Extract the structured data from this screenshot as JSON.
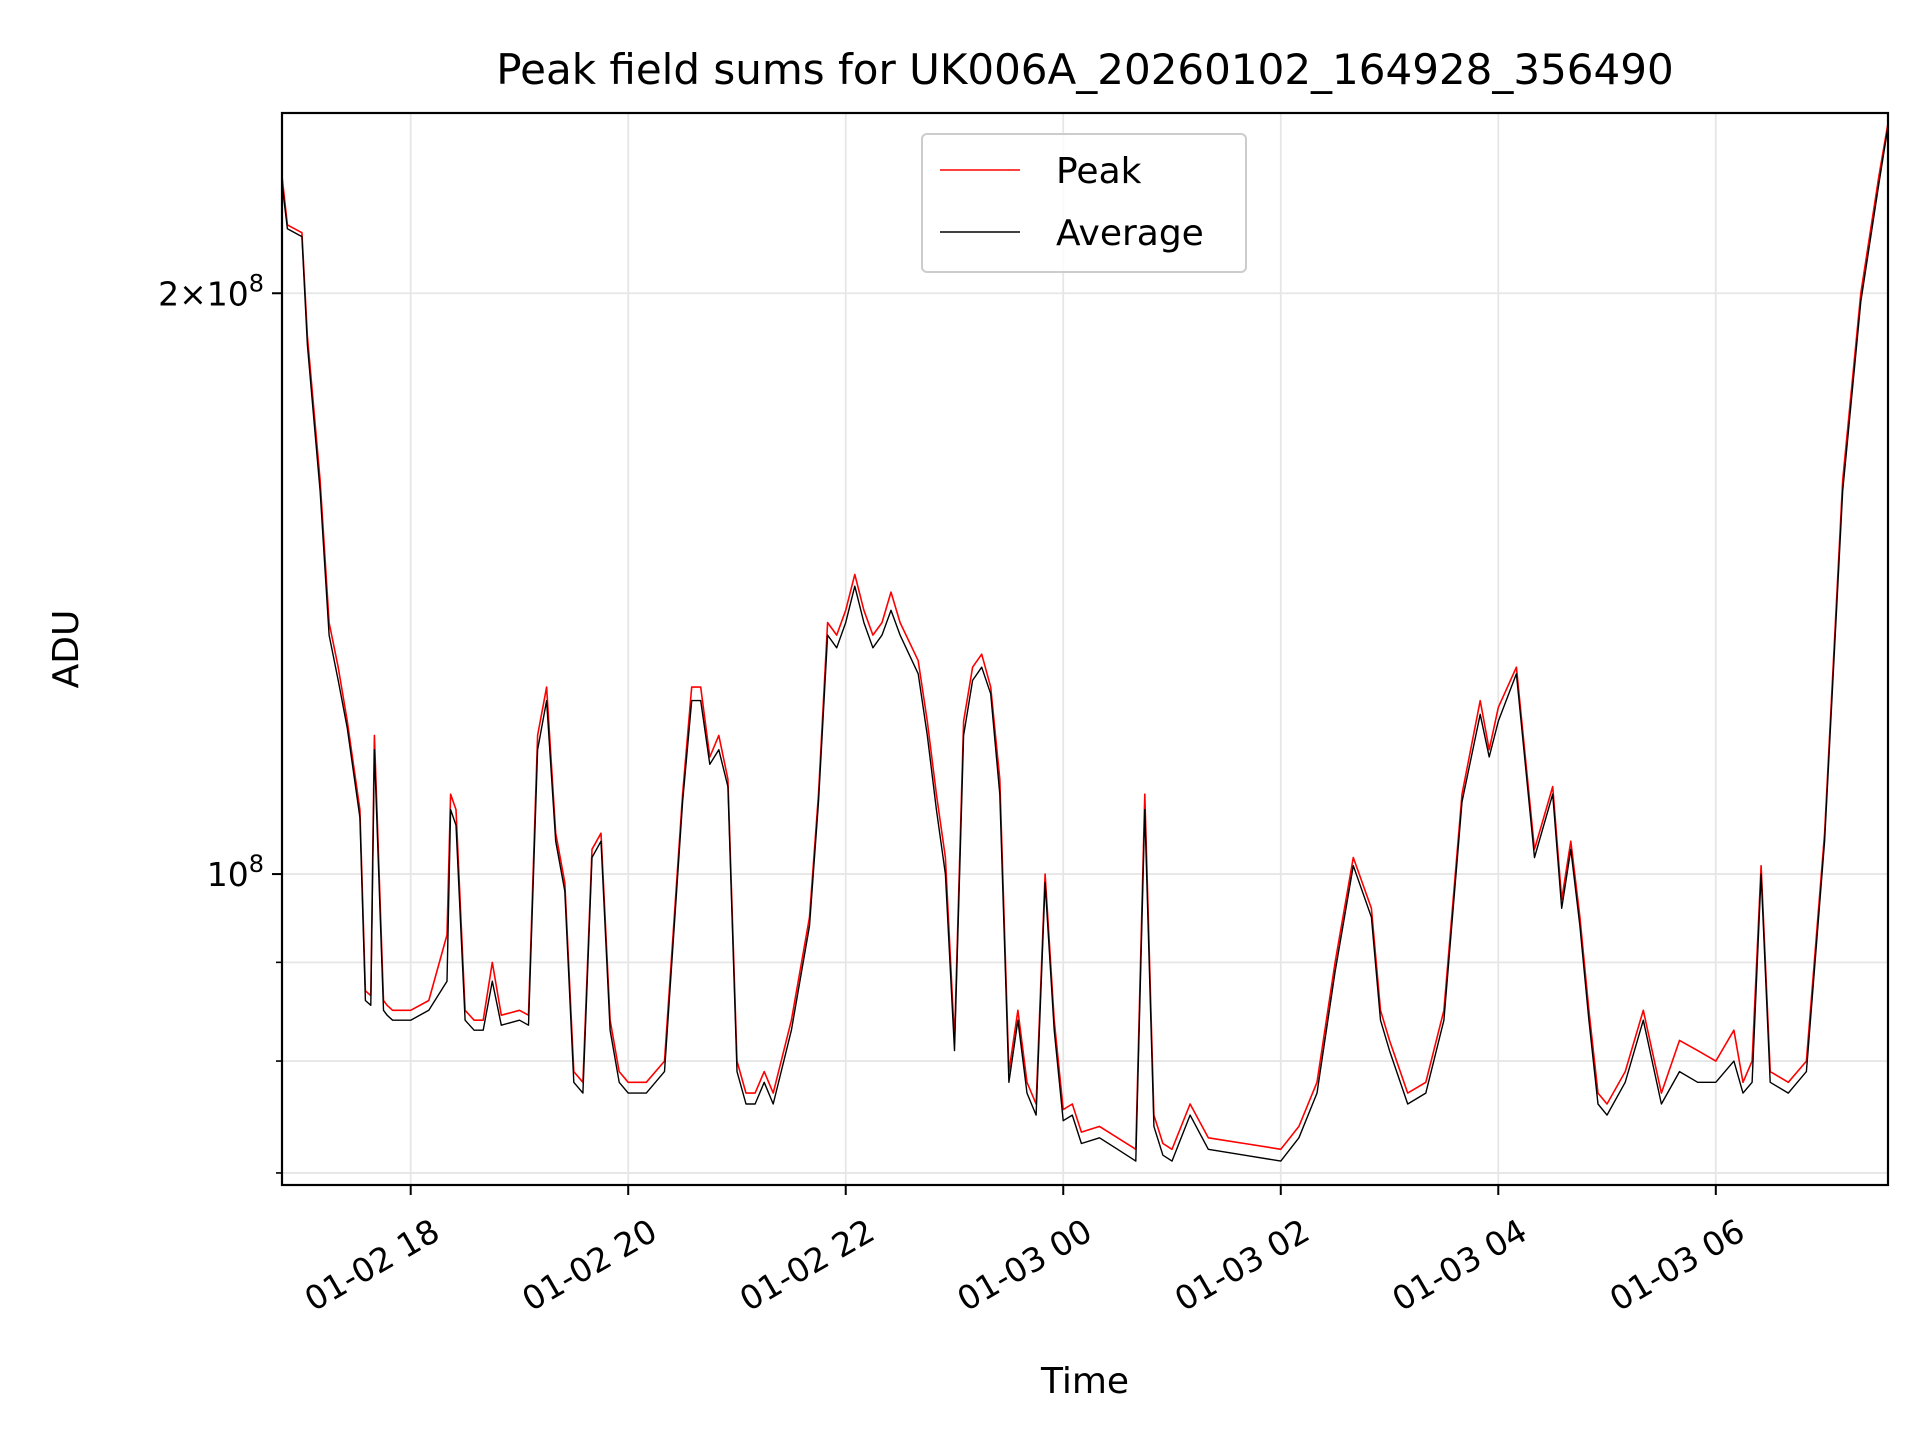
{
  "chart_data": {
    "type": "line",
    "title": "Peak field sums for UK006A_20260102_164928_356490",
    "xlabel": "Time",
    "ylabel": "ADU",
    "y_scale": "log",
    "grid": true,
    "legend_placement": "upper-center",
    "x_range": [
      "01-02 16:49",
      "01-03 07:35"
    ],
    "ylim": [
      69000000,
      248000000
    ],
    "x_ticks": [
      "01-02 18",
      "01-02 20",
      "01-02 22",
      "01-03 00",
      "01-03 02",
      "01-03 04",
      "01-03 06"
    ],
    "y_major_ticks": [
      {
        "value": 200000000,
        "mantissa": "2",
        "exponent": "8"
      },
      {
        "value": 100000000,
        "mantissa": "",
        "exponent": "8"
      }
    ],
    "y_minor_ticks": [
      90000000,
      80000000,
      70000000
    ],
    "colors": {
      "peak": "#ff0000",
      "average": "#000000",
      "grid": "#e6e6e6"
    },
    "series": [
      {
        "name": "Peak",
        "x": [
          "01-02 16:49",
          "01-02 16:52",
          "01-02 17:00",
          "01-02 17:03",
          "01-02 17:10",
          "01-02 17:15",
          "01-02 17:20",
          "01-02 17:25",
          "01-02 17:32",
          "01-02 17:35",
          "01-02 17:38",
          "01-02 17:40",
          "01-02 17:45",
          "01-02 17:47",
          "01-02 17:50",
          "01-02 18:00",
          "01-02 18:10",
          "01-02 18:20",
          "01-02 18:22",
          "01-02 18:25",
          "01-02 18:30",
          "01-02 18:35",
          "01-02 18:40",
          "01-02 18:45",
          "01-02 18:50",
          "01-02 19:00",
          "01-02 19:05",
          "01-02 19:10",
          "01-02 19:15",
          "01-02 19:20",
          "01-02 19:25",
          "01-02 19:30",
          "01-02 19:35",
          "01-02 19:40",
          "01-02 19:45",
          "01-02 19:50",
          "01-02 19:55",
          "01-02 20:00",
          "01-02 20:10",
          "01-02 20:20",
          "01-02 20:30",
          "01-02 20:35",
          "01-02 20:40",
          "01-02 20:45",
          "01-02 20:50",
          "01-02 20:55",
          "01-02 21:00",
          "01-02 21:05",
          "01-02 21:10",
          "01-02 21:15",
          "01-02 21:20",
          "01-02 21:30",
          "01-02 21:40",
          "01-02 21:45",
          "01-02 21:50",
          "01-02 21:55",
          "01-02 22:00",
          "01-02 22:05",
          "01-02 22:10",
          "01-02 22:15",
          "01-02 22:20",
          "01-02 22:25",
          "01-02 22:30",
          "01-02 22:40",
          "01-02 22:45",
          "01-02 22:50",
          "01-02 22:55",
          "01-02 23:00",
          "01-02 23:05",
          "01-02 23:10",
          "01-02 23:15",
          "01-02 23:20",
          "01-02 23:25",
          "01-02 23:30",
          "01-02 23:35",
          "01-02 23:40",
          "01-02 23:45",
          "01-02 23:50",
          "01-02 23:55",
          "01-03 00:00",
          "01-03 00:05",
          "01-03 00:10",
          "01-03 00:20",
          "01-03 00:30",
          "01-03 00:40",
          "01-03 00:45",
          "01-03 00:50",
          "01-03 00:55",
          "01-03 01:00",
          "01-03 01:10",
          "01-03 01:20",
          "01-03 01:40",
          "01-03 02:00",
          "01-03 02:10",
          "01-03 02:20",
          "01-03 02:30",
          "01-03 02:40",
          "01-03 02:50",
          "01-03 02:55",
          "01-03 03:00",
          "01-03 03:10",
          "01-03 03:20",
          "01-03 03:30",
          "01-03 03:40",
          "01-03 03:50",
          "01-03 03:55",
          "01-03 04:00",
          "01-03 04:10",
          "01-03 04:20",
          "01-03 04:30",
          "01-03 04:35",
          "01-03 04:40",
          "01-03 04:45",
          "01-03 04:50",
          "01-03 04:55",
          "01-03 05:00",
          "01-03 05:10",
          "01-03 05:20",
          "01-03 05:30",
          "01-03 05:40",
          "01-03 05:50",
          "01-03 06:00",
          "01-03 06:10",
          "01-03 06:15",
          "01-03 06:20",
          "01-03 06:25",
          "01-03 06:30",
          "01-03 06:40",
          "01-03 06:50",
          "01-03 07:00",
          "01-03 07:10",
          "01-03 07:20",
          "01-03 07:30",
          "01-03 07:35"
        ],
        "values": [
          230000000,
          217000000,
          215000000,
          190000000,
          160000000,
          135000000,
          128000000,
          120000000,
          108000000,
          87000000,
          86500000,
          118000000,
          86000000,
          85500000,
          85000000,
          85000000,
          86000000,
          93000000,
          110000000,
          108000000,
          85000000,
          84000000,
          84000000,
          90000000,
          84500000,
          85000000,
          84500000,
          118000000,
          125000000,
          105000000,
          99000000,
          79000000,
          78000000,
          103000000,
          105000000,
          84000000,
          79000000,
          78000000,
          78000000,
          80000000,
          110000000,
          125000000,
          125000000,
          115000000,
          118000000,
          112000000,
          80000000,
          77000000,
          77000000,
          79000000,
          77000000,
          84000000,
          95000000,
          110000000,
          135000000,
          133000000,
          137000000,
          143000000,
          137000000,
          133000000,
          135000000,
          140000000,
          135000000,
          129000000,
          120000000,
          110000000,
          102000000,
          82000000,
          120000000,
          128000000,
          130000000,
          125000000,
          112000000,
          79000000,
          85000000,
          78000000,
          76000000,
          100000000,
          84000000,
          75500000,
          76000000,
          73500000,
          74000000,
          73000000,
          72000000,
          110000000,
          75000000,
          72500000,
          72000000,
          76000000,
          73000000,
          72500000,
          72000000,
          74000000,
          78000000,
          90000000,
          102000000,
          96000000,
          85000000,
          82000000,
          77000000,
          78000000,
          85000000,
          110000000,
          123000000,
          116000000,
          122000000,
          128000000,
          103000000,
          111000000,
          97000000,
          104000000,
          95000000,
          85000000,
          77000000,
          76000000,
          79000000,
          85000000,
          77000000,
          82000000,
          81000000,
          80000000,
          83000000,
          78000000,
          80000000,
          101000000,
          79000000,
          78000000,
          80000000,
          105000000,
          160000000,
          200000000,
          230000000,
          245000000
        ]
      },
      {
        "name": "Average",
        "x": [
          "01-02 16:49",
          "01-02 16:52",
          "01-02 17:00",
          "01-02 17:03",
          "01-02 17:10",
          "01-02 17:15",
          "01-02 17:20",
          "01-02 17:25",
          "01-02 17:32",
          "01-02 17:35",
          "01-02 17:38",
          "01-02 17:40",
          "01-02 17:45",
          "01-02 17:47",
          "01-02 17:50",
          "01-02 18:00",
          "01-02 18:10",
          "01-02 18:20",
          "01-02 18:22",
          "01-02 18:25",
          "01-02 18:30",
          "01-02 18:35",
          "01-02 18:40",
          "01-02 18:45",
          "01-02 18:50",
          "01-02 19:00",
          "01-02 19:05",
          "01-02 19:10",
          "01-02 19:15",
          "01-02 19:20",
          "01-02 19:25",
          "01-02 19:30",
          "01-02 19:35",
          "01-02 19:40",
          "01-02 19:45",
          "01-02 19:50",
          "01-02 19:55",
          "01-02 20:00",
          "01-02 20:10",
          "01-02 20:20",
          "01-02 20:30",
          "01-02 20:35",
          "01-02 20:40",
          "01-02 20:45",
          "01-02 20:50",
          "01-02 20:55",
          "01-02 21:00",
          "01-02 21:05",
          "01-02 21:10",
          "01-02 21:15",
          "01-02 21:20",
          "01-02 21:30",
          "01-02 21:40",
          "01-02 21:45",
          "01-02 21:50",
          "01-02 21:55",
          "01-02 22:00",
          "01-02 22:05",
          "01-02 22:10",
          "01-02 22:15",
          "01-02 22:20",
          "01-02 22:25",
          "01-02 22:30",
          "01-02 22:40",
          "01-02 22:45",
          "01-02 22:50",
          "01-02 22:55",
          "01-02 23:00",
          "01-02 23:05",
          "01-02 23:10",
          "01-02 23:15",
          "01-02 23:20",
          "01-02 23:25",
          "01-02 23:30",
          "01-02 23:35",
          "01-02 23:40",
          "01-02 23:45",
          "01-02 23:50",
          "01-02 23:55",
          "01-03 00:00",
          "01-03 00:05",
          "01-03 00:10",
          "01-03 00:20",
          "01-03 00:30",
          "01-03 00:40",
          "01-03 00:45",
          "01-03 00:50",
          "01-03 00:55",
          "01-03 01:00",
          "01-03 01:10",
          "01-03 01:20",
          "01-03 01:40",
          "01-03 02:00",
          "01-03 02:10",
          "01-03 02:20",
          "01-03 02:30",
          "01-03 02:40",
          "01-03 02:50",
          "01-03 02:55",
          "01-03 03:00",
          "01-03 03:10",
          "01-03 03:20",
          "01-03 03:30",
          "01-03 03:40",
          "01-03 03:50",
          "01-03 03:55",
          "01-03 04:00",
          "01-03 04:10",
          "01-03 04:20",
          "01-03 04:30",
          "01-03 04:35",
          "01-03 04:40",
          "01-03 04:45",
          "01-03 04:50",
          "01-03 04:55",
          "01-03 05:00",
          "01-03 05:10",
          "01-03 05:20",
          "01-03 05:30",
          "01-03 05:40",
          "01-03 05:50",
          "01-03 06:00",
          "01-03 06:10",
          "01-03 06:15",
          "01-03 06:20",
          "01-03 06:25",
          "01-03 06:30",
          "01-03 06:40",
          "01-03 06:50",
          "01-03 07:00",
          "01-03 07:10",
          "01-03 07:20",
          "01-03 07:30",
          "01-03 07:35"
        ],
        "values": [
          228000000,
          216000000,
          214000000,
          188000000,
          158000000,
          133000000,
          126000000,
          119000000,
          107000000,
          86000000,
          85500000,
          116000000,
          85000000,
          84500000,
          84000000,
          84000000,
          85000000,
          88000000,
          108000000,
          106000000,
          84000000,
          83000000,
          83000000,
          88000000,
          83500000,
          84000000,
          83500000,
          116000000,
          123000000,
          104000000,
          98000000,
          78000000,
          77000000,
          102000000,
          104000000,
          83000000,
          78000000,
          77000000,
          77000000,
          79000000,
          109000000,
          123000000,
          123000000,
          114000000,
          116000000,
          111000000,
          79000000,
          76000000,
          76000000,
          78000000,
          76000000,
          83000000,
          94000000,
          109000000,
          133000000,
          131000000,
          135000000,
          141000000,
          135000000,
          131000000,
          133000000,
          137000000,
          133000000,
          127000000,
          118000000,
          108000000,
          100000000,
          81000000,
          118000000,
          126000000,
          128000000,
          124000000,
          110000000,
          78000000,
          84000000,
          77000000,
          75000000,
          99000000,
          83000000,
          74500000,
          75000000,
          72500000,
          73000000,
          72000000,
          71000000,
          108000000,
          74000000,
          71500000,
          71000000,
          75000000,
          72000000,
          71500000,
          71000000,
          73000000,
          77000000,
          89000000,
          101000000,
          95000000,
          84000000,
          81000000,
          76000000,
          77000000,
          84000000,
          109000000,
          121000000,
          115000000,
          120000000,
          127000000,
          102000000,
          110000000,
          96000000,
          103000000,
          94000000,
          84000000,
          76000000,
          75000000,
          78000000,
          84000000,
          76000000,
          79000000,
          78000000,
          78000000,
          80000000,
          77000000,
          78000000,
          100000000,
          78000000,
          77000000,
          79000000,
          104000000,
          158000000,
          198000000,
          228000000,
          244000000
        ]
      }
    ]
  }
}
